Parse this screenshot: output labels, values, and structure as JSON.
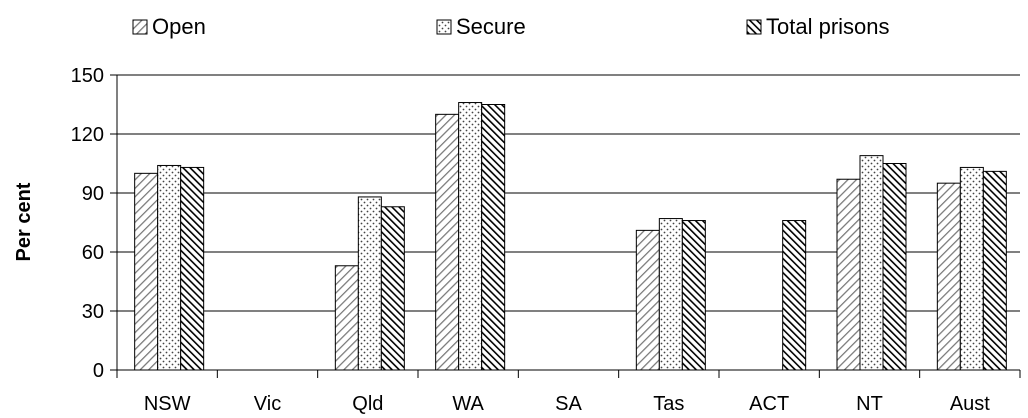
{
  "chart_data": {
    "type": "bar",
    "title": "",
    "xlabel": "",
    "ylabel": "Per cent",
    "ylim": [
      0,
      150
    ],
    "yticks": [
      0,
      30,
      60,
      90,
      120,
      150
    ],
    "grid": true,
    "legend_position": "top",
    "categories": [
      "NSW",
      "Vic",
      "Qld",
      "WA",
      "SA",
      "Tas",
      "ACT",
      "NT",
      "Aust"
    ],
    "series": [
      {
        "name": "Open",
        "pattern": "diagonal-light",
        "values": [
          100,
          null,
          53,
          130,
          null,
          71,
          null,
          97,
          95
        ]
      },
      {
        "name": "Secure",
        "pattern": "dots",
        "values": [
          104,
          null,
          88,
          136,
          null,
          77,
          null,
          109,
          103
        ]
      },
      {
        "name": "Total prisons",
        "pattern": "diagonal-dense",
        "values": [
          103,
          null,
          83,
          135,
          null,
          76,
          76,
          105,
          101
        ]
      }
    ]
  }
}
